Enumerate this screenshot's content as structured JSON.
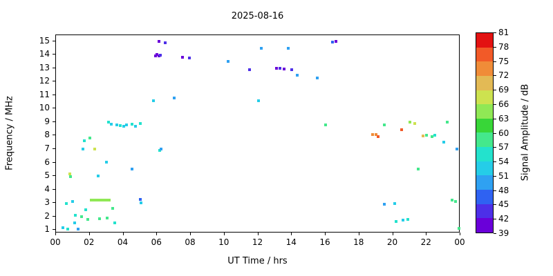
{
  "chart_data": {
    "type": "scatter",
    "title": "2025-08-16",
    "xlabel": "UT Time / hrs",
    "ylabel": "Frequency / MHz",
    "colorbar_label": "Signal Amplitude / dB",
    "xlim": [
      0,
      24
    ],
    "ylim": [
      0.75,
      15.45
    ],
    "x_tick_values": [
      0,
      2,
      4,
      6,
      8,
      10,
      12,
      14,
      16,
      18,
      20,
      22,
      24
    ],
    "x_tick_labels": [
      "00",
      "02",
      "04",
      "06",
      "08",
      "10",
      "12",
      "14",
      "16",
      "18",
      "20",
      "22",
      "00"
    ],
    "y_tick_values": [
      1,
      2,
      3,
      4,
      5,
      6,
      7,
      8,
      9,
      10,
      11,
      12,
      13,
      14,
      15
    ],
    "colorbar_ticks": [
      39,
      42,
      45,
      48,
      51,
      54,
      57,
      60,
      63,
      66,
      69,
      72,
      75,
      78,
      81
    ],
    "colorbar_colors": [
      "#6a00d9",
      "#4d2fe8",
      "#2f62f2",
      "#2fa1f2",
      "#25cde8",
      "#23e2cd",
      "#44e88c",
      "#38d638",
      "#90e855",
      "#cde24f",
      "#e3ba55",
      "#f08c38",
      "#f25a28",
      "#e31212"
    ],
    "legend_position": "right-colorbar",
    "grid": false,
    "points": [
      [
        0.4,
        1.15,
        52
      ],
      [
        0.6,
        2.95,
        55
      ],
      [
        0.7,
        1.05,
        55
      ],
      [
        0.8,
        5.15,
        67
      ],
      [
        0.85,
        4.95,
        58
      ],
      [
        1.0,
        3.1,
        52
      ],
      [
        1.1,
        1.5,
        52
      ],
      [
        1.15,
        2.1,
        55
      ],
      [
        1.3,
        1.05,
        49
      ],
      [
        1.5,
        2.0,
        58
      ],
      [
        1.6,
        7.0,
        52
      ],
      [
        1.7,
        7.6,
        55
      ],
      [
        1.75,
        2.5,
        55
      ],
      [
        1.9,
        1.8,
        58
      ],
      [
        2.0,
        7.8,
        58
      ],
      [
        2.1,
        3.2,
        64
      ],
      [
        2.25,
        3.2,
        64
      ],
      [
        2.4,
        3.2,
        64
      ],
      [
        2.55,
        3.2,
        64
      ],
      [
        2.7,
        3.2,
        64
      ],
      [
        2.85,
        3.2,
        64
      ],
      [
        3.0,
        3.2,
        64
      ],
      [
        3.15,
        3.2,
        64
      ],
      [
        2.3,
        7.0,
        67
      ],
      [
        2.5,
        5.0,
        52
      ],
      [
        2.6,
        1.85,
        58
      ],
      [
        3.0,
        6.05,
        52
      ],
      [
        3.05,
        1.9,
        58
      ],
      [
        3.1,
        9.0,
        55
      ],
      [
        3.3,
        8.85,
        52
      ],
      [
        3.35,
        2.6,
        58
      ],
      [
        3.5,
        1.5,
        55
      ],
      [
        3.6,
        8.8,
        52
      ],
      [
        3.8,
        8.75,
        55
      ],
      [
        4.0,
        8.7,
        52
      ],
      [
        4.2,
        8.8,
        52
      ],
      [
        4.5,
        8.85,
        55
      ],
      [
        4.5,
        5.5,
        49
      ],
      [
        4.7,
        8.7,
        52
      ],
      [
        5.0,
        8.9,
        55
      ],
      [
        5.0,
        3.25,
        46
      ],
      [
        5.05,
        3.0,
        52
      ],
      [
        5.8,
        10.6,
        52
      ],
      [
        5.9,
        13.9,
        40
      ],
      [
        6.0,
        14.0,
        40
      ],
      [
        6.1,
        13.9,
        40
      ],
      [
        6.2,
        13.95,
        43
      ],
      [
        6.1,
        15.0,
        40
      ],
      [
        6.15,
        6.9,
        55
      ],
      [
        6.25,
        7.0,
        49
      ],
      [
        6.5,
        14.9,
        43
      ],
      [
        7.0,
        10.8,
        49
      ],
      [
        7.5,
        13.8,
        40
      ],
      [
        7.9,
        13.75,
        43
      ],
      [
        10.2,
        13.5,
        49
      ],
      [
        11.5,
        12.9,
        43
      ],
      [
        12.0,
        10.6,
        52
      ],
      [
        12.2,
        14.5,
        49
      ],
      [
        13.1,
        13.0,
        40
      ],
      [
        13.3,
        13.0,
        43
      ],
      [
        13.55,
        12.95,
        40
      ],
      [
        13.8,
        14.5,
        49
      ],
      [
        14.0,
        12.9,
        43
      ],
      [
        14.3,
        12.5,
        49
      ],
      [
        15.5,
        12.3,
        49
      ],
      [
        16.0,
        8.8,
        58
      ],
      [
        16.4,
        14.95,
        46
      ],
      [
        16.6,
        15.0,
        40
      ],
      [
        18.8,
        8.05,
        73
      ],
      [
        19.0,
        8.1,
        73
      ],
      [
        19.1,
        7.9,
        76
      ],
      [
        19.5,
        8.8,
        58
      ],
      [
        19.5,
        2.9,
        49
      ],
      [
        20.1,
        2.95,
        52
      ],
      [
        20.2,
        1.6,
        55
      ],
      [
        20.5,
        8.45,
        76
      ],
      [
        20.6,
        1.7,
        52
      ],
      [
        20.9,
        1.75,
        55
      ],
      [
        21.0,
        9.0,
        64
      ],
      [
        21.3,
        8.9,
        67
      ],
      [
        21.5,
        5.5,
        58
      ],
      [
        21.8,
        7.95,
        70
      ],
      [
        22.0,
        8.0,
        58
      ],
      [
        22.3,
        7.9,
        58
      ],
      [
        22.5,
        8.0,
        55
      ],
      [
        23.0,
        7.5,
        52
      ],
      [
        23.2,
        9.0,
        58
      ],
      [
        23.5,
        3.2,
        58
      ],
      [
        23.7,
        3.1,
        58
      ],
      [
        23.8,
        7.0,
        49
      ],
      [
        23.9,
        1.1,
        58
      ]
    ]
  }
}
